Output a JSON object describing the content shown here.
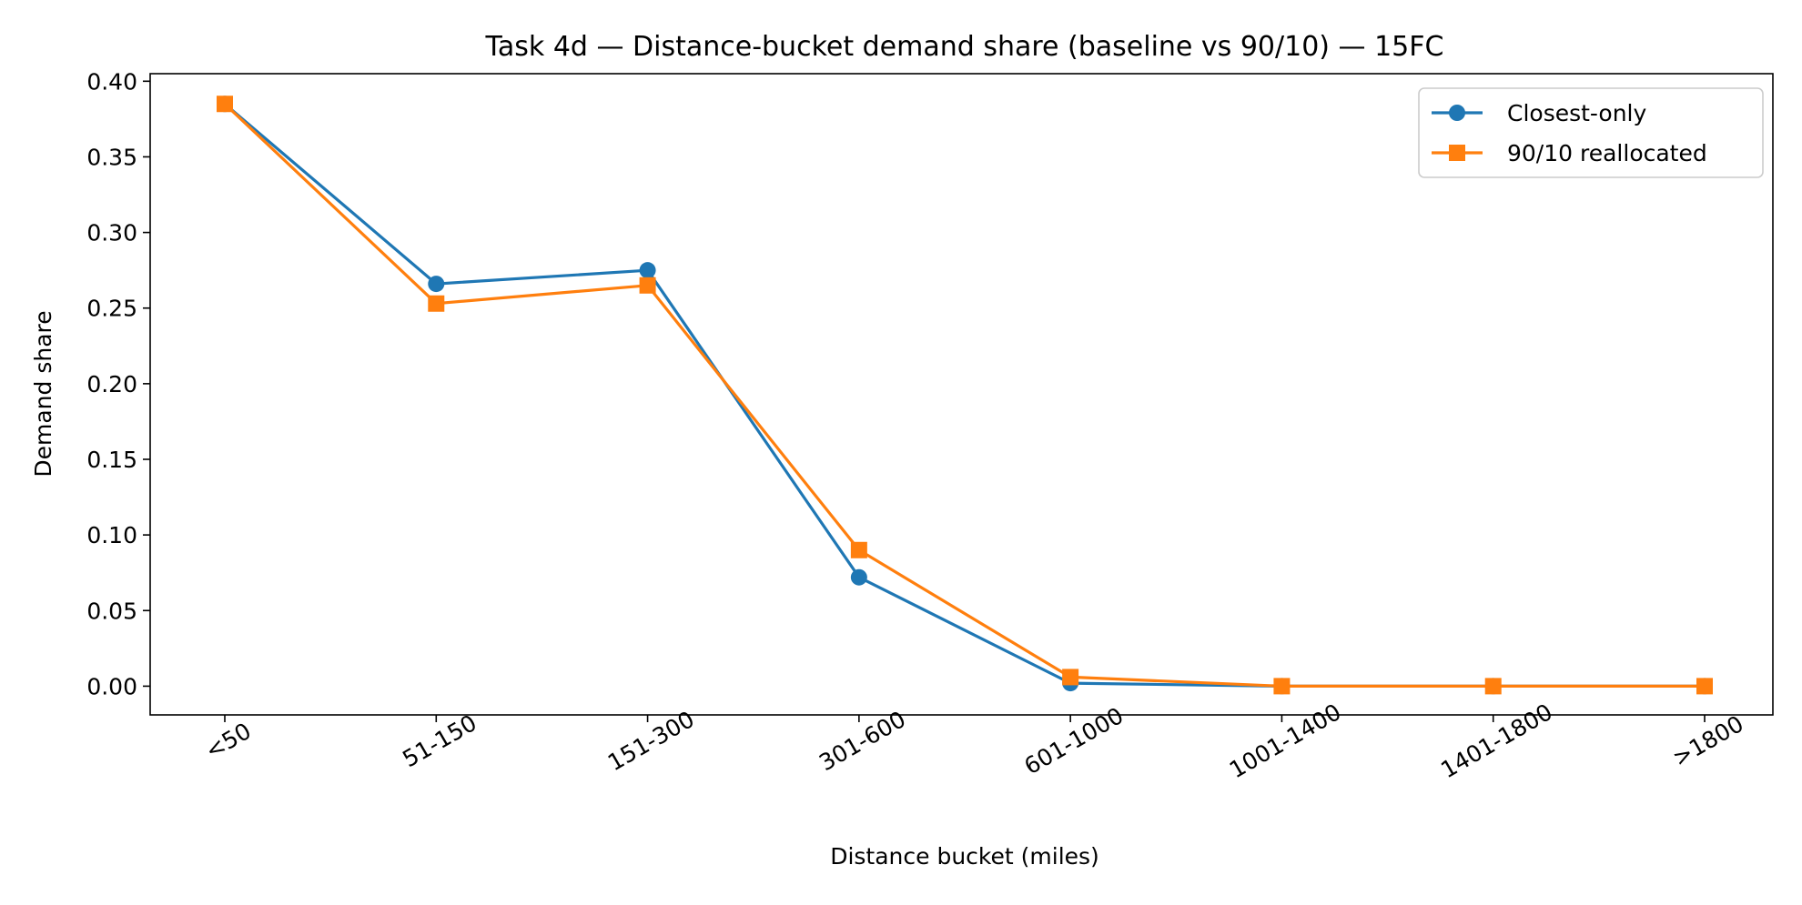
{
  "chart_data": {
    "type": "line",
    "title": "Task 4d — Distance-bucket demand share (baseline vs 90/10) — 15FC",
    "xlabel": "Distance bucket (miles)",
    "ylabel": "Demand share",
    "categories": [
      "<50",
      "51-150",
      "151-300",
      "301-600",
      "601-1000",
      "1001-1400",
      "1401-1800",
      ">1800"
    ],
    "ylim": [
      -0.019,
      0.405
    ],
    "yticks": [
      0.0,
      0.05,
      0.1,
      0.15,
      0.2,
      0.25,
      0.3,
      0.35,
      0.4
    ],
    "ytick_labels": [
      "0.00",
      "0.05",
      "0.10",
      "0.15",
      "0.20",
      "0.25",
      "0.30",
      "0.35",
      "0.40"
    ],
    "grid": false,
    "legend_position": "top-right",
    "series": [
      {
        "name": "Closest-only",
        "color": "#1f77b4",
        "marker": "circle",
        "values": [
          0.385,
          0.266,
          0.275,
          0.072,
          0.002,
          0.0,
          0.0,
          0.0
        ]
      },
      {
        "name": "90/10 reallocated",
        "color": "#ff7f0e",
        "marker": "square",
        "values": [
          0.385,
          0.253,
          0.265,
          0.09,
          0.006,
          0.0,
          0.0,
          0.0
        ]
      }
    ]
  }
}
